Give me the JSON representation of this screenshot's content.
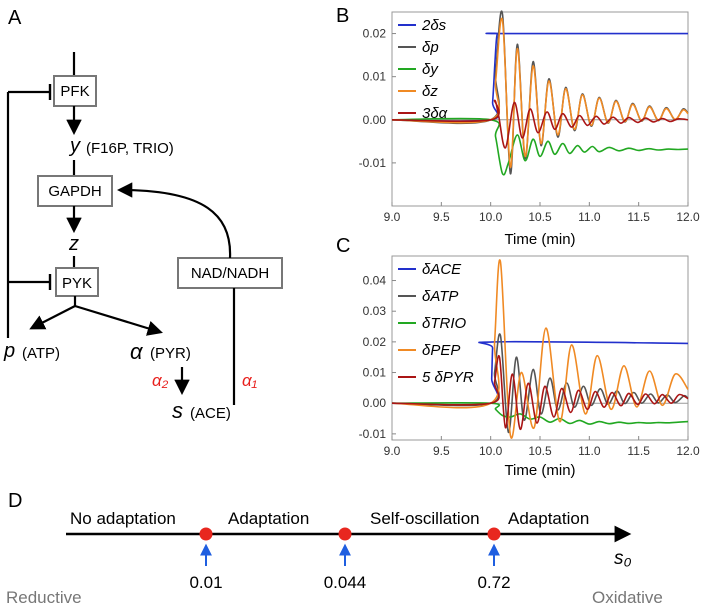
{
  "panels": {
    "a": "A",
    "b": "B",
    "c": "C",
    "d": "D"
  },
  "pathway": {
    "boxes": {
      "pfk": "PFK",
      "gapdh": "GAPDH",
      "pyk": "PYK",
      "nad": "NAD/NADH"
    },
    "y_var": "y",
    "y_desc": "(F16P, TRIO)",
    "z_var": "z",
    "p_var": "p",
    "p_desc": "(ATP)",
    "a_var": "α",
    "a_desc": "(PYR)",
    "s_var": "s",
    "s_desc": "(ACE)",
    "alpha2": "α₂",
    "alpha1": "α₁"
  },
  "chart_data": [
    {
      "type": "line",
      "panel": "B",
      "xlabel": "Time (min)",
      "ylabel": "",
      "xlim": [
        9.0,
        12.0
      ],
      "ylim": [
        -0.02,
        0.025
      ],
      "xticks": [
        "9.0",
        "9.5",
        "10.0",
        "10.5",
        "11.0",
        "11.5",
        "12.0"
      ],
      "yticks": [
        "0.02",
        "0.01",
        "0.00",
        "-0.01"
      ],
      "legend_position": "top-left",
      "series": [
        {
          "name": "2δs",
          "color": "#2230cc",
          "x": [
            9.0,
            10.0,
            10.02,
            10.04,
            10.06,
            10.08,
            10.1,
            12.0
          ],
          "values": [
            0,
            0,
            0.004,
            0.012,
            0.019,
            0.02,
            0.02,
            0.02
          ]
        },
        {
          "name": "δp",
          "color": "#555555",
          "x": [
            9.0,
            10.0,
            10.05,
            10.12,
            10.2,
            10.27,
            10.35,
            10.43,
            10.51,
            10.59,
            10.68,
            10.76,
            10.85,
            10.93,
            11.02,
            11.1,
            11.19,
            11.27,
            11.36,
            11.44,
            11.53,
            11.61,
            11.7,
            11.78,
            11.87,
            11.95,
            12.0
          ],
          "values": [
            0,
            0,
            0.011,
            0.0245,
            -0.0125,
            0.0175,
            -0.009,
            0.0135,
            -0.006,
            0.0095,
            -0.004,
            0.0075,
            -0.0025,
            0.006,
            -0.0015,
            0.0052,
            -0.0008,
            0.0045,
            -0.0005,
            0.0038,
            -0.0003,
            0.0032,
            -0.0002,
            0.0028,
            0.0,
            0.0025,
            0.0015
          ]
        },
        {
          "name": "δy",
          "color": "#22a822",
          "x": [
            9.0,
            10.0,
            10.05,
            10.12,
            10.18,
            10.27,
            10.35,
            10.43,
            10.5,
            10.58,
            10.65,
            10.73,
            10.8,
            10.88,
            10.95,
            11.03,
            11.1,
            11.2,
            11.3,
            11.4,
            11.5,
            11.6,
            11.7,
            11.8,
            11.9,
            12.0
          ],
          "values": [
            0,
            0,
            -0.004,
            -0.0125,
            -0.01,
            -0.0035,
            -0.0095,
            -0.0045,
            -0.0085,
            -0.005,
            -0.008,
            -0.0055,
            -0.0078,
            -0.006,
            -0.0075,
            -0.0062,
            -0.0074,
            -0.0064,
            -0.0072,
            -0.0066,
            -0.0071,
            -0.0067,
            -0.007,
            -0.0068,
            -0.0069,
            -0.0068
          ]
        },
        {
          "name": "δz",
          "color": "#f08a24",
          "x": [
            9.0,
            10.0,
            10.05,
            10.12,
            10.2,
            10.27,
            10.35,
            10.43,
            10.51,
            10.59,
            10.68,
            10.76,
            10.85,
            10.93,
            11.02,
            11.1,
            11.19,
            11.27,
            11.36,
            11.44,
            11.53,
            11.61,
            11.7,
            11.78,
            11.87,
            11.95,
            12.0
          ],
          "values": [
            0,
            0,
            0.009,
            0.023,
            -0.011,
            0.0165,
            -0.0085,
            0.0125,
            -0.0055,
            0.009,
            -0.0035,
            0.0072,
            -0.0022,
            0.0058,
            -0.0013,
            0.005,
            -0.0007,
            0.0043,
            -0.0004,
            0.0036,
            -0.0002,
            0.003,
            -0.0001,
            0.0026,
            0.0001,
            0.0023,
            0.0014
          ]
        },
        {
          "name": "3δα",
          "color": "#aa1515",
          "x": [
            9.0,
            10.0,
            10.04,
            10.08,
            10.15,
            10.24,
            10.32,
            10.4,
            10.48,
            10.57,
            10.65,
            10.73,
            10.82,
            10.9,
            10.98,
            11.07,
            11.15,
            11.24,
            11.32,
            11.4,
            11.49,
            11.57,
            11.65,
            11.74,
            11.82,
            11.9,
            12.0
          ],
          "values": [
            0,
            0,
            0.0045,
            0.001,
            -0.0065,
            0.004,
            -0.0042,
            0.0025,
            -0.003,
            0.0018,
            -0.0022,
            0.0014,
            -0.0017,
            0.001,
            -0.0013,
            0.0008,
            -0.001,
            0.0006,
            -0.0008,
            0.0005,
            -0.0006,
            0.0004,
            -0.0005,
            0.0003,
            -0.0004,
            0.0002,
            0.0
          ]
        }
      ]
    },
    {
      "type": "line",
      "panel": "C",
      "xlabel": "Time (min)",
      "ylabel": "",
      "xlim": [
        9.0,
        12.0
      ],
      "ylim": [
        -0.012,
        0.048
      ],
      "xticks": [
        "9.0",
        "9.5",
        "10.0",
        "10.5",
        "11.0",
        "11.5",
        "12.0"
      ],
      "yticks": [
        "0.04",
        "0.03",
        "0.02",
        "0.01",
        "0.00",
        "-0.01"
      ],
      "legend_position": "top-left",
      "series": [
        {
          "name": "δACE",
          "color": "#2230cc",
          "x": [
            9.0,
            10.0,
            10.01,
            10.02,
            10.03,
            12.0
          ],
          "values": [
            0,
            0,
            0.008,
            0.018,
            0.02,
            0.0195
          ]
        },
        {
          "name": "δATP",
          "color": "#555555",
          "x": [
            9.0,
            10.0,
            10.04,
            10.1,
            10.18,
            10.26,
            10.34,
            10.43,
            10.51,
            10.6,
            10.68,
            10.77,
            10.85,
            10.94,
            11.02,
            11.11,
            11.19,
            11.28,
            11.36,
            11.45,
            11.53,
            11.62,
            11.7,
            11.79,
            11.87,
            11.96,
            12.0
          ],
          "values": [
            0,
            0,
            0.01,
            0.022,
            -0.0095,
            0.015,
            -0.0055,
            0.011,
            -0.0035,
            0.0082,
            -0.0022,
            0.0066,
            -0.0013,
            0.0055,
            -0.0007,
            0.0047,
            -0.0003,
            0.004,
            -0.0001,
            0.0035,
            0.0,
            0.003,
            0.0001,
            0.0027,
            0.0002,
            0.0024,
            0.0015
          ]
        },
        {
          "name": "δTRIO",
          "color": "#22a822",
          "x": [
            9.0,
            10.0,
            10.05,
            10.12,
            10.2,
            10.3,
            10.4,
            10.5,
            10.6,
            10.7,
            10.8,
            10.9,
            11.0,
            11.1,
            11.2,
            11.3,
            11.4,
            11.5,
            11.6,
            11.7,
            11.8,
            11.9,
            12.0
          ],
          "values": [
            0,
            0,
            -0.002,
            -0.004,
            -0.0045,
            -0.0035,
            -0.0052,
            -0.0045,
            -0.0062,
            -0.005,
            -0.0066,
            -0.0056,
            -0.0068,
            -0.006,
            -0.0067,
            -0.0062,
            -0.0066,
            -0.0063,
            -0.0065,
            -0.0063,
            -0.0064,
            -0.0062,
            -0.006
          ]
        },
        {
          "name": "δPEP",
          "color": "#f08a24",
          "x": [
            9.0,
            10.0,
            10.04,
            10.1,
            10.2,
            10.31,
            10.44,
            10.56,
            10.7,
            10.82,
            10.96,
            11.08,
            11.22,
            11.35,
            11.48,
            11.61,
            11.74,
            11.87,
            12.0
          ],
          "values": [
            0,
            0,
            0.02,
            0.046,
            -0.0105,
            0.01,
            -0.008,
            0.0245,
            -0.006,
            0.019,
            -0.0035,
            0.0155,
            -0.002,
            0.0122,
            -0.0012,
            0.0105,
            -0.0007,
            0.0095,
            0.0045
          ]
        },
        {
          "name": "5 δPYR",
          "color": "#aa1515",
          "x": [
            9.0,
            10.0,
            10.04,
            10.09,
            10.15,
            10.22,
            10.3,
            10.38,
            10.47,
            10.55,
            10.64,
            10.72,
            10.81,
            10.89,
            10.98,
            11.06,
            11.15,
            11.23,
            11.32,
            11.4,
            11.49,
            11.57,
            11.66,
            11.74,
            11.83,
            11.91,
            12.0
          ],
          "values": [
            0,
            0,
            0.007,
            0.015,
            -0.008,
            0.0095,
            -0.0085,
            0.0065,
            -0.0065,
            0.0055,
            -0.0045,
            0.0048,
            -0.003,
            0.0042,
            -0.002,
            0.0038,
            -0.0013,
            0.0035,
            -0.0008,
            0.0032,
            -0.0004,
            0.003,
            -0.0002,
            0.0028,
            0.0,
            0.0028,
            0.0015
          ]
        }
      ]
    }
  ],
  "number_line": {
    "regions": [
      "No adaptation",
      "Adaptation",
      "Self-oscillation",
      "Adaptation"
    ],
    "values": [
      "0.01",
      "0.044",
      "0.72"
    ],
    "axis_label": "s₀",
    "left_end": "Reductive",
    "right_end": "Oxidative",
    "point_color": "#e8271f",
    "arrow_color": "#1f5ee0"
  }
}
